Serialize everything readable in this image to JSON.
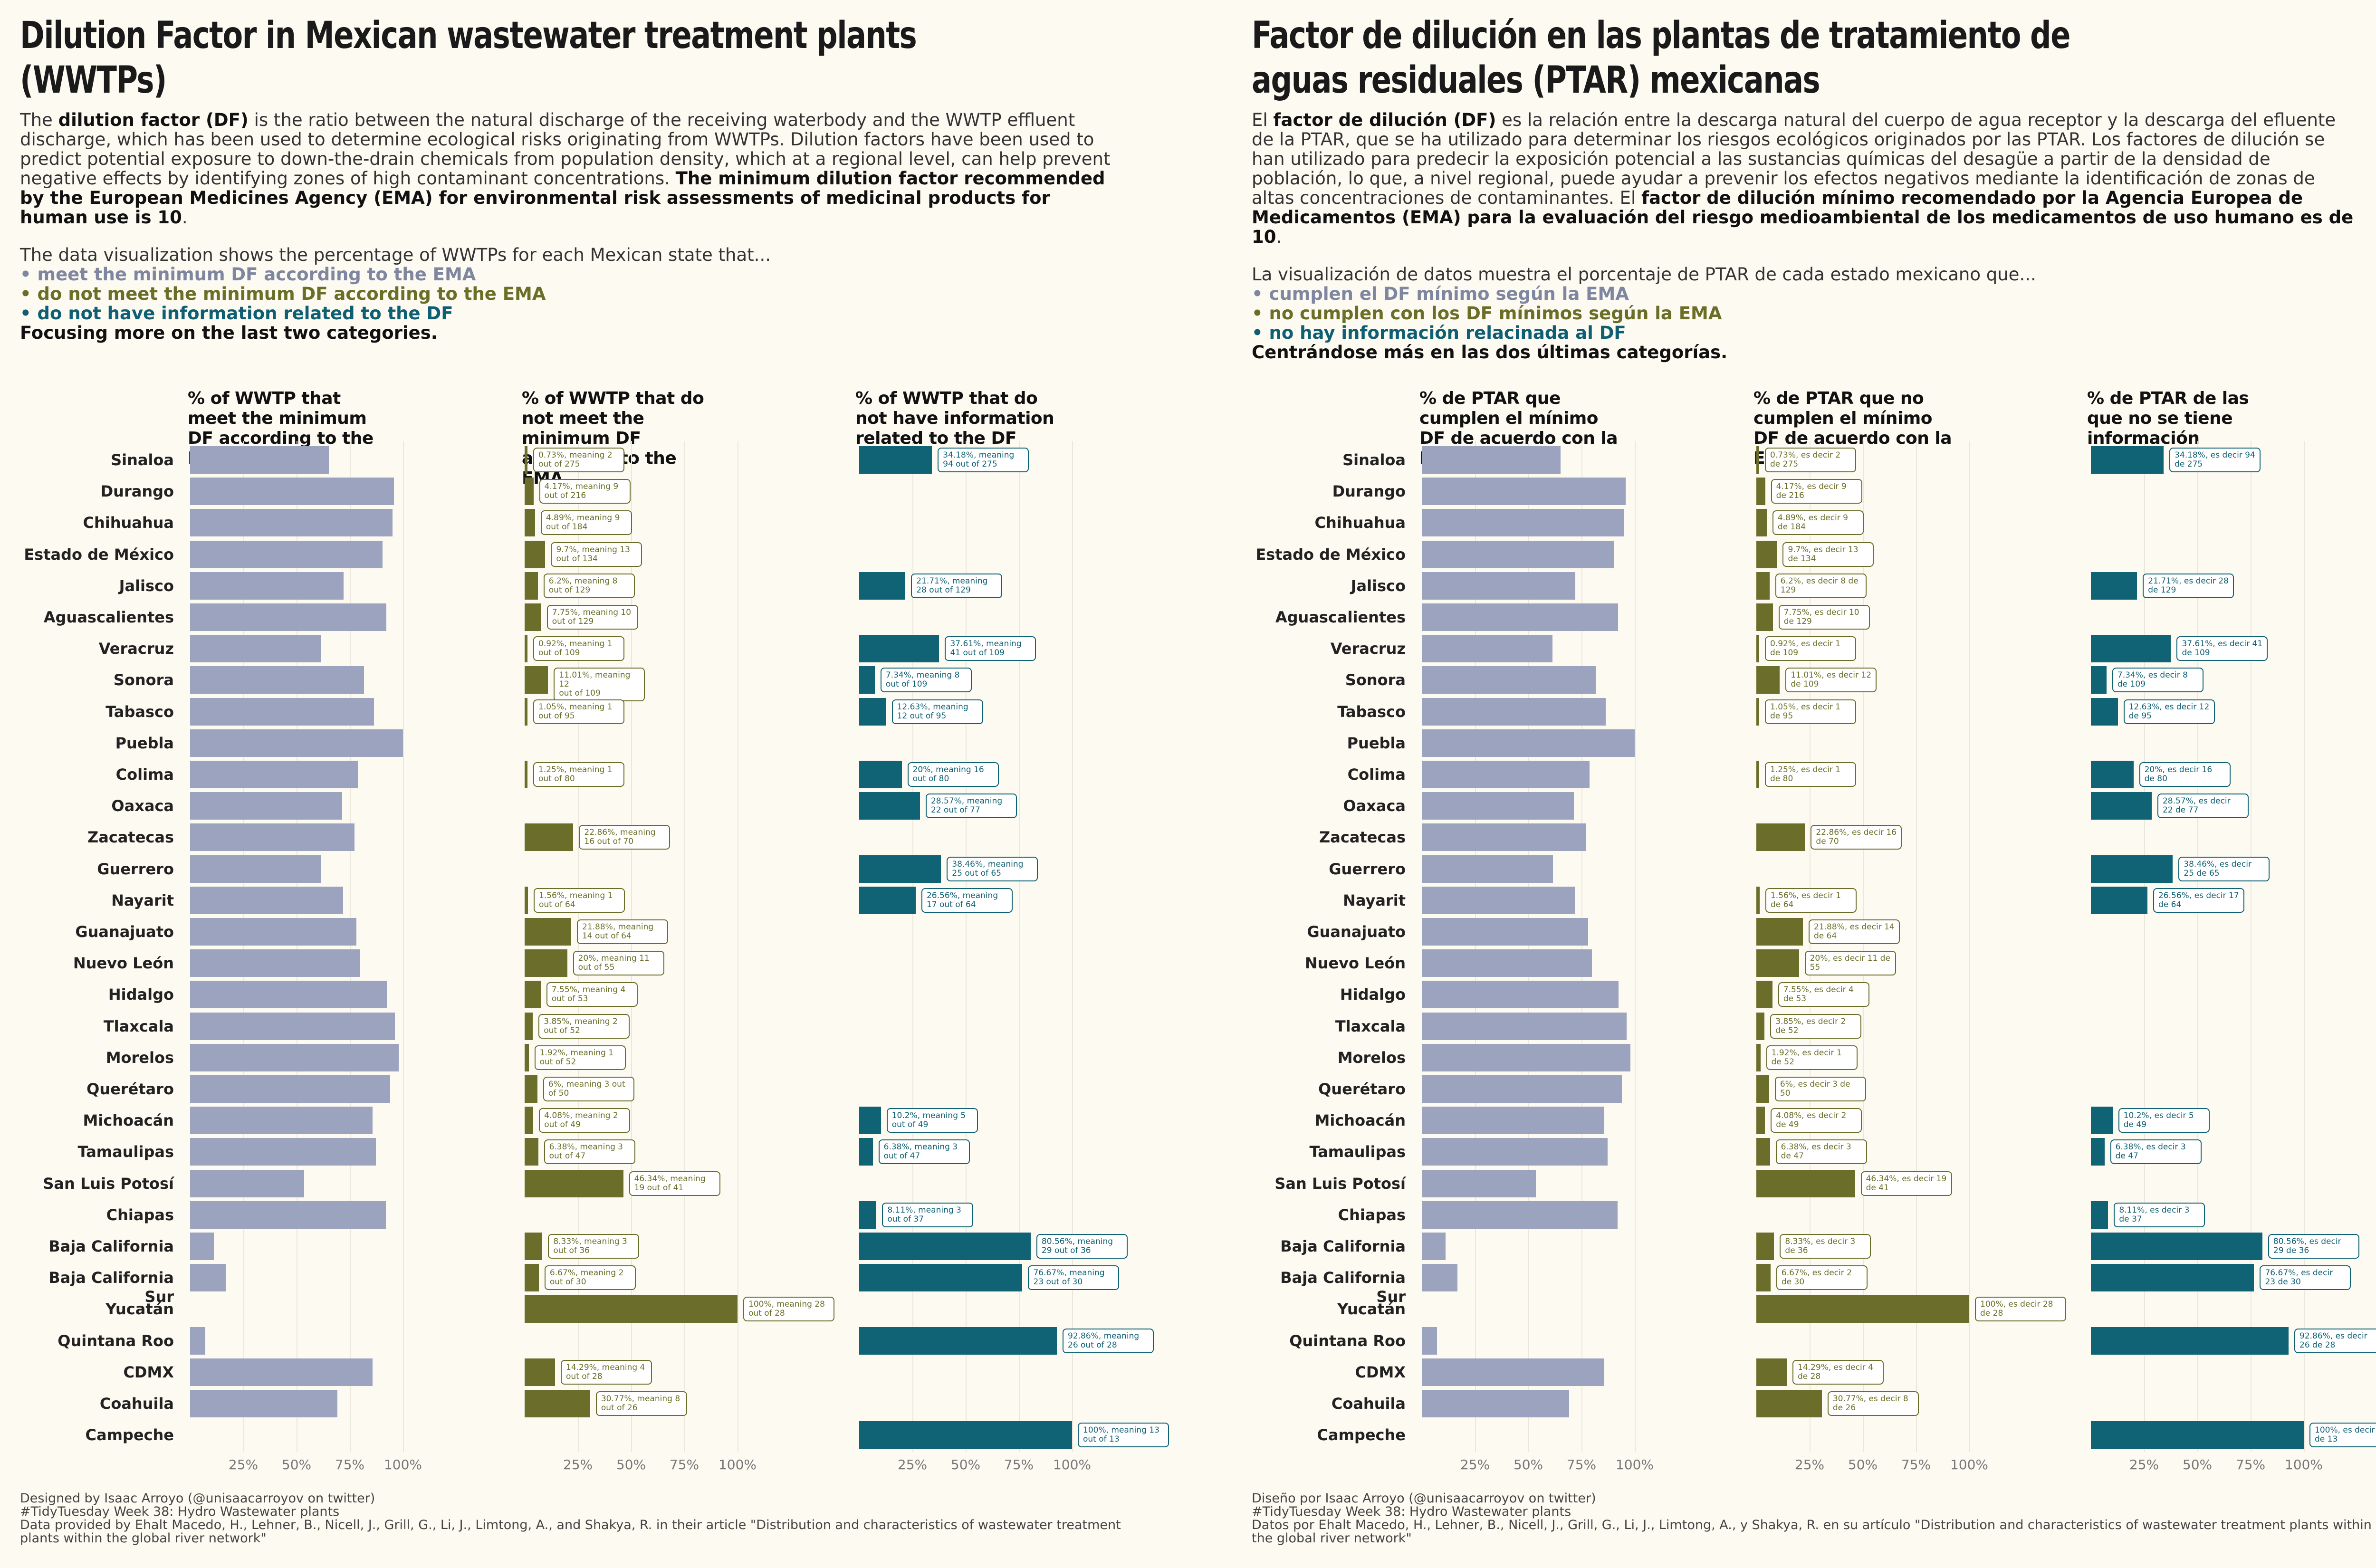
{
  "colors": {
    "meet": "#9ca3bf",
    "not_meet": "#6b6e2b",
    "no_info": "#0f6375",
    "background": "#fdfaf2"
  },
  "ticks": [
    "25%",
    "50%",
    "75%",
    "100%"
  ],
  "states": [
    "Sinaloa",
    "Durango",
    "Chihuahua",
    "Estado de México",
    "Jalisco",
    "Aguascalientes",
    "Veracruz",
    "Sonora",
    "Tabasco",
    "Puebla",
    "Colima",
    "Oaxaca",
    "Zacatecas",
    "Guerrero",
    "Nayarit",
    "Guanajuato",
    "Nuevo León",
    "Hidalgo",
    "Tlaxcala",
    "Morelos",
    "Querétaro",
    "Michoacán",
    "Tamaulipas",
    "San Luis Potosí",
    "Chiapas",
    "Baja California",
    "Baja California Sur",
    "Yucatán",
    "Quintana Roo",
    "CDMX",
    "Coahuila",
    "Campeche"
  ],
  "en": {
    "title": "Dilution Factor in Mexican wastewater treatment plants (WWTPs)",
    "intro": {
      "p1_a": "The ",
      "p1_b": "dilution factor (DF)",
      "p1_c": " is the ratio between the natural discharge of the receiving waterbody and the WWTP effluent discharge, which has been used to determine ecological risks originating from WWTPs. Dilution factors have been used to predict potential exposure to down-the-drain chemicals from population density, which at a regional level, can help prevent negative effects by identifying zones of high contaminant concentrations. ",
      "p1_d": "The minimum dilution factor recommended by the European Medicines Agency (EMA) for environmental risk assessments of medicinal products for human use is 10",
      "p1_e": ".",
      "p2": "The data visualization shows the percentage of WWTPs for each Mexican state that...",
      "b1": "• meet the minimum DF according to the EMA",
      "b2": "• do not meet the minimum DF according to the EMA",
      "b3": "• do not have information related to the DF",
      "focus": "Focusing more on the last two categories."
    },
    "panel_titles": [
      "% of WWTP that meet the minimum DF according to the EMA",
      "% of WWTP that do not meet the minimum DF according to the EMA",
      "% of WWTP that do not have information related to the DF"
    ],
    "footer": [
      "Designed by Isaac Arroyo (@unisaacarroyov on twitter)",
      "#TidyTuesday Week 38: Hydro Wastewater plants",
      "Data provided by Ehalt Macedo, H., Lehner, B., Nicell, J., Grill, G., Li, J., Limtong, A., and Shakya, R. in their article \"Distribution and characteristics of wastewater treatment plants within the global river network\""
    ],
    "not_labels": [
      "0.73%, meaning 2\nout of 275",
      "4.17%, meaning 9\nout of 216",
      "4.89%, meaning 9\nout of 184",
      "9.7%, meaning 13\nout of 134",
      "6.2%, meaning 8\nout of 129",
      "7.75%, meaning 10\nout of 129",
      "0.92%, meaning 1\nout of 109",
      "11.01%, meaning 12\nout of 109",
      "1.05%, meaning 1\nout of 95",
      "",
      "1.25%, meaning 1\nout of 80",
      "",
      "22.86%, meaning\n16 out of 70",
      "",
      "1.56%, meaning 1\nout of 64",
      "21.88%, meaning\n14 out of 64",
      "20%, meaning 11\nout of 55",
      "7.55%, meaning 4\nout of 53",
      "3.85%, meaning 2\nout of 52",
      "1.92%, meaning 1\nout of 52",
      "6%, meaning 3 out\nof 50",
      "4.08%, meaning 2\nout of 49",
      "6.38%, meaning 3\nout of 47",
      "46.34%, meaning\n19 out of 41",
      "",
      "8.33%, meaning 3\nout of 36",
      "6.67%, meaning 2\nout of 30",
      "100%, meaning 28\nout of 28",
      "",
      "14.29%, meaning 4\nout of 28",
      "30.77%, meaning 8\nout of 26",
      ""
    ],
    "noinfo_labels": [
      "34.18%, meaning\n94 out of 275",
      "",
      "",
      "",
      "21.71%, meaning\n28 out of 129",
      "",
      "37.61%, meaning\n41 out of 109",
      "7.34%, meaning 8\nout of 109",
      "12.63%, meaning\n12 out of 95",
      "",
      "20%, meaning 16\nout of 80",
      "28.57%, meaning\n22 out of 77",
      "",
      "38.46%, meaning\n25 out of 65",
      "26.56%, meaning\n17 out of 64",
      "",
      "",
      "",
      "",
      "",
      "",
      "10.2%, meaning 5\nout of 49",
      "6.38%, meaning 3\nout of 47",
      "",
      "8.11%, meaning 3\nout of 37",
      "80.56%, meaning\n29 out of 36",
      "76.67%, meaning\n23 out of 30",
      "",
      "92.86%, meaning\n26 out of 28",
      "",
      "",
      "100%, meaning 13\nout of 13"
    ]
  },
  "es": {
    "title": "Factor de dilución en las plantas de tratamiento de aguas residuales (PTAR) mexicanas",
    "intro": {
      "p1_a": "El ",
      "p1_b": "factor de dilución (DF)",
      "p1_c": " es la relación entre la descarga natural del cuerpo de agua receptor y la descarga del efluente de la PTAR, que se ha utilizado para determinar los riesgos ecológicos originados por las PTAR. Los factores de dilución se han utilizado para predecir la exposición potencial a las sustancias químicas del desagüe a partir de la densidad de población, lo que, a nivel regional, puede ayudar a prevenir los efectos negativos mediante la identificación de zonas de altas concentraciones de contaminantes. El ",
      "p1_d": "factor de dilución mínimo recomendado por la Agencia Europea de Medicamentos (EMA) para la evaluación del riesgo medioambiental de los medicamentos de uso humano es de 10",
      "p1_e": ".",
      "p2": "La visualización de datos muestra el porcentaje de PTAR de cada estado mexicano que...",
      "b1": "• cumplen el DF mínimo según la EMA",
      "b2": "• no cumplen con los DF mínimos según la EMA",
      "b3": "• no hay información relacinada al DF",
      "focus": "Centrándose más en las dos últimas categorías."
    },
    "panel_titles": [
      "% de PTAR que cumplen el mínimo DF de acuerdo con la EMA",
      "% de PTAR que no cumplen el mínimo DF de acuerdo con la EMA",
      "% de PTAR de las que no se tiene información"
    ],
    "footer": [
      "Diseño por Isaac Arroyo (@unisaacarroyov on twitter)",
      "#TidyTuesday Week 38: Hydro Wastewater plants",
      "Datos por Ehalt Macedo, H., Lehner, B., Nicell, J., Grill, G., Li, J., Limtong, A., y Shakya, R. en su artículo \"Distribution and characteristics of wastewater treatment plants within the global river network\""
    ],
    "not_labels": [
      "0.73%, es decir 2\nde 275",
      "4.17%, es decir 9\nde 216",
      "4.89%, es decir 9\nde 184",
      "9.7%, es decir 13\nde 134",
      "6.2%, es decir 8 de\n129",
      "7.75%, es decir 10\nde 129",
      "0.92%, es decir 1\nde 109",
      "11.01%, es decir 12\nde 109",
      "1.05%, es decir 1\nde 95",
      "",
      "1.25%, es decir 1\nde 80",
      "",
      "22.86%, es decir 16\nde 70",
      "",
      "1.56%, es decir 1\nde 64",
      "21.88%, es decir 14\nde 64",
      "20%, es decir 11 de\n55",
      "7.55%, es decir 4\nde 53",
      "3.85%, es decir 2\nde 52",
      "1.92%, es decir 1\nde 52",
      "6%, es decir 3 de\n50",
      "4.08%, es decir 2\nde 49",
      "6.38%, es decir 3\nde 47",
      "46.34%, es decir 19\nde 41",
      "",
      "8.33%, es decir 3\nde 36",
      "6.67%, es decir 2\nde 30",
      "100%, es decir 28\nde 28",
      "",
      "14.29%, es decir 4\nde 28",
      "30.77%, es decir 8\nde 26",
      ""
    ],
    "noinfo_labels": [
      "34.18%, es decir 94\nde 275",
      "",
      "",
      "",
      "21.71%, es decir 28\nde 129",
      "",
      "37.61%, es decir 41\nde 109",
      "7.34%, es decir 8\nde 109",
      "12.63%, es decir 12\nde 95",
      "",
      "20%, es decir 16\nde 80",
      "28.57%, es decir\n22 de 77",
      "",
      "38.46%, es decir\n25 de 65",
      "26.56%, es decir 17\nde 64",
      "",
      "",
      "",
      "",
      "",
      "",
      "10.2%, es decir 5\nde 49",
      "6.38%, es decir 3\nde 47",
      "",
      "8.11%, es decir 3\nde 37",
      "80.56%, es decir\n29 de 36",
      "76.67%, es decir\n23 de 30",
      "",
      "92.86%, es decir\n26 de 28",
      "",
      "",
      "100%, es decir 13\nde 13"
    ]
  },
  "chart_data": [
    {
      "type": "bar",
      "title": "% of WWTP that meet the minimum DF according to the EMA",
      "orientation": "horizontal",
      "categories": [
        "Sinaloa",
        "Durango",
        "Chihuahua",
        "Estado de México",
        "Jalisco",
        "Aguascalientes",
        "Veracruz",
        "Sonora",
        "Tabasco",
        "Puebla",
        "Colima",
        "Oaxaca",
        "Zacatecas",
        "Guerrero",
        "Nayarit",
        "Guanajuato",
        "Nuevo León",
        "Hidalgo",
        "Tlaxcala",
        "Morelos",
        "Querétaro",
        "Michoacán",
        "Tamaulipas",
        "San Luis Potosí",
        "Chiapas",
        "Baja California",
        "Baja California Sur",
        "Yucatán",
        "Quintana Roo",
        "CDMX",
        "Coahuila",
        "Campeche"
      ],
      "values": [
        65.09,
        95.83,
        95.11,
        90.3,
        72.09,
        92.25,
        61.47,
        81.65,
        86.32,
        100,
        78.75,
        71.43,
        77.14,
        61.54,
        71.88,
        78.12,
        80,
        92.45,
        96.15,
        98.08,
        94,
        85.71,
        87.23,
        53.66,
        91.89,
        11.11,
        16.67,
        0,
        7.14,
        85.71,
        69.23,
        0
      ],
      "xlim": [
        0,
        100
      ]
    },
    {
      "type": "bar",
      "title": "% of WWTP that do not meet the minimum DF according to the EMA",
      "orientation": "horizontal",
      "categories": [
        "Sinaloa",
        "Durango",
        "Chihuahua",
        "Estado de México",
        "Jalisco",
        "Aguascalientes",
        "Veracruz",
        "Sonora",
        "Tabasco",
        "Puebla",
        "Colima",
        "Oaxaca",
        "Zacatecas",
        "Guerrero",
        "Nayarit",
        "Guanajuato",
        "Nuevo León",
        "Hidalgo",
        "Tlaxcala",
        "Morelos",
        "Querétaro",
        "Michoacán",
        "Tamaulipas",
        "San Luis Potosí",
        "Chiapas",
        "Baja California",
        "Baja California Sur",
        "Yucatán",
        "Quintana Roo",
        "CDMX",
        "Coahuila",
        "Campeche"
      ],
      "values": [
        0.73,
        4.17,
        4.89,
        9.7,
        6.2,
        7.75,
        0.92,
        11.01,
        1.05,
        0,
        1.25,
        0,
        22.86,
        0,
        1.56,
        21.88,
        20,
        7.55,
        3.85,
        1.92,
        6,
        4.08,
        6.38,
        46.34,
        0,
        8.33,
        6.67,
        100,
        0,
        14.29,
        30.77,
        0
      ],
      "xlim": [
        0,
        100
      ]
    },
    {
      "type": "bar",
      "title": "% of WWTP that do not have information related to the DF",
      "orientation": "horizontal",
      "categories": [
        "Sinaloa",
        "Durango",
        "Chihuahua",
        "Estado de México",
        "Jalisco",
        "Aguascalientes",
        "Veracruz",
        "Sonora",
        "Tabasco",
        "Puebla",
        "Colima",
        "Oaxaca",
        "Zacatecas",
        "Guerrero",
        "Nayarit",
        "Guanajuato",
        "Nuevo León",
        "Hidalgo",
        "Tlaxcala",
        "Morelos",
        "Querétaro",
        "Michoacán",
        "Tamaulipas",
        "San Luis Potosí",
        "Chiapas",
        "Baja California",
        "Baja California Sur",
        "Yucatán",
        "Quintana Roo",
        "CDMX",
        "Coahuila",
        "Campeche"
      ],
      "values": [
        34.18,
        0,
        0,
        0,
        21.71,
        0,
        37.61,
        7.34,
        12.63,
        0,
        20,
        28.57,
        0,
        38.46,
        26.56,
        0,
        0,
        0,
        0,
        0,
        0,
        10.2,
        6.38,
        0,
        8.11,
        80.56,
        76.67,
        0,
        92.86,
        0,
        0,
        100
      ],
      "xlim": [
        0,
        100
      ]
    }
  ]
}
